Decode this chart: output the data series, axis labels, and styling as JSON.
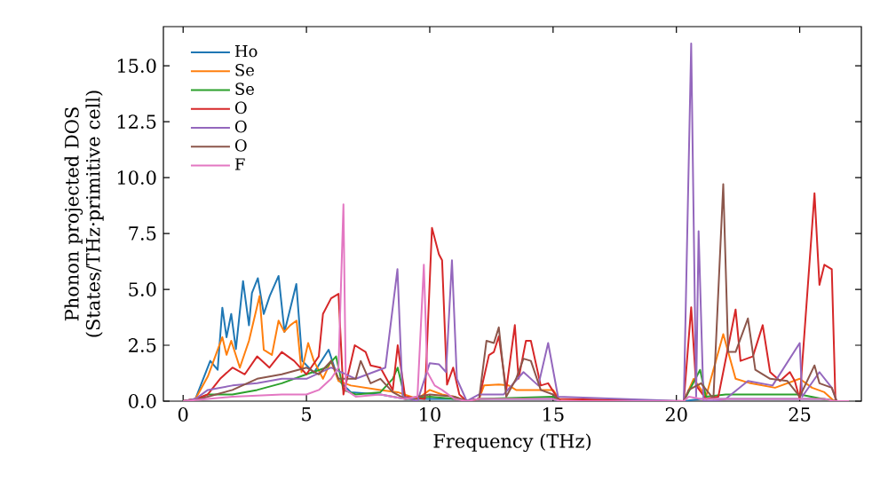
{
  "chart_data": {
    "type": "line",
    "xlabel": "Frequency (THz)",
    "ylabel": "Phonon projected DOS (States/THz·primitive cell)",
    "xlim": [
      -0.8,
      27.5
    ],
    "ylim": [
      0,
      16.75
    ],
    "xticks": [
      0,
      5,
      10,
      15,
      20,
      25
    ],
    "yticks": [
      {
        "value": 0,
        "label": "0.0"
      },
      {
        "value": 2.5,
        "label": "2.5"
      },
      {
        "value": 5,
        "label": "5.0"
      },
      {
        "value": 7.5,
        "label": "7.5"
      },
      {
        "value": 10,
        "label": "10.0"
      },
      {
        "value": 12.5,
        "label": "12.5"
      },
      {
        "value": 15,
        "label": "15.0"
      }
    ],
    "legend": "top left",
    "series": [
      {
        "name": "Ho",
        "color": "#1f77b4",
        "x": [
          0,
          0.5,
          1.1,
          1.4,
          1.59,
          1.76,
          1.95,
          2.14,
          2.43,
          2.67,
          2.79,
          3.03,
          3.27,
          3.51,
          3.87,
          4.11,
          4.59,
          4.83,
          5.3,
          5.9,
          6.3,
          6.8,
          8,
          9,
          11,
          11.5,
          12,
          15,
          15.3,
          20.3,
          21,
          24,
          26,
          26.5,
          27
        ],
        "values": [
          0,
          0.1,
          1.8,
          1.4,
          4.18,
          2.86,
          3.9,
          2.33,
          5.37,
          3.39,
          4.84,
          5.5,
          3.9,
          4.7,
          5.6,
          3.1,
          5.24,
          1.8,
          1.27,
          2.3,
          0.94,
          0.4,
          0.3,
          0.1,
          0.1,
          0,
          0.1,
          0.1,
          0,
          0,
          0.1,
          0.1,
          0.1,
          0,
          0
        ]
      },
      {
        "name": "Se",
        "color": "#ff7f0e",
        "x": [
          0,
          0.5,
          1.0,
          1.59,
          1.76,
          1.95,
          2.3,
          2.67,
          3.1,
          3.27,
          3.6,
          3.87,
          4.1,
          4.35,
          4.6,
          4.8,
          5.07,
          5.3,
          5.67,
          6.0,
          6.3,
          6.8,
          8.0,
          8.7,
          9.5,
          10.0,
          10.5,
          11.0,
          11.5,
          12.0,
          12.2,
          12.8,
          13.2,
          13.5,
          15.0,
          15.3,
          20.3,
          20.7,
          21.2,
          21.9,
          22.4,
          23.0,
          24.0,
          25.0,
          25.5,
          26.0,
          26.4,
          27
        ],
        "values": [
          0,
          0.1,
          1.1,
          2.86,
          2.07,
          2.7,
          1.5,
          2.7,
          4.7,
          2.3,
          2.07,
          3.6,
          3.1,
          3.4,
          3.6,
          1.3,
          2.6,
          1.8,
          1.0,
          1.8,
          0.9,
          0.7,
          0.5,
          0.4,
          0.1,
          0.5,
          0.3,
          0.2,
          0,
          0.1,
          0.7,
          0.74,
          0.7,
          0.5,
          0.5,
          0,
          0,
          1.0,
          0.2,
          3.0,
          1.0,
          0.8,
          0.6,
          1.0,
          0.6,
          0.4,
          0,
          0
        ]
      },
      {
        "name": "Se",
        "color": "#2ca02c",
        "x": [
          0,
          0.5,
          1,
          2,
          3,
          4,
          5,
          5.8,
          6.2,
          6.5,
          7,
          8,
          8.5,
          8.7,
          9,
          10,
          11,
          11.5,
          12,
          15,
          15.3,
          20.3,
          20.96,
          21.2,
          22,
          25,
          26.4,
          27
        ],
        "values": [
          0,
          0.05,
          0.3,
          0.3,
          0.5,
          0.8,
          1.2,
          1.5,
          2.0,
          0.5,
          0.3,
          0.4,
          1.0,
          1.5,
          0.1,
          0.2,
          0.1,
          0,
          0.1,
          0.2,
          0,
          0,
          1.4,
          0.2,
          0.3,
          0.3,
          0,
          0
        ]
      },
      {
        "name": "O",
        "color": "#d62728",
        "x": [
          0,
          0.5,
          1,
          1.5,
          2,
          2.5,
          3,
          3.5,
          4,
          4.5,
          5,
          5.5,
          5.67,
          6.0,
          6.3,
          6.5,
          6.96,
          7.4,
          7.6,
          8.0,
          8.5,
          8.7,
          9.0,
          9.8,
          10.09,
          10.37,
          10.5,
          10.7,
          10.95,
          11.2,
          11.5,
          12,
          12.4,
          12.6,
          12.8,
          13.1,
          13.45,
          13.6,
          13.9,
          14.1,
          14.5,
          14.8,
          15.2,
          20.3,
          20.6,
          20.8,
          21.2,
          21.7,
          22.4,
          22.6,
          23.1,
          23.5,
          23.8,
          24.2,
          24.6,
          24.8,
          25.0,
          25.6,
          25.8,
          26.0,
          26.3,
          26.45,
          27
        ],
        "values": [
          0,
          0.1,
          0.3,
          1.0,
          1.5,
          1.2,
          2.0,
          1.5,
          2.2,
          1.8,
          1.2,
          2.0,
          3.9,
          4.6,
          4.8,
          0.3,
          2.5,
          2.2,
          1.6,
          1.5,
          0.5,
          2.5,
          0.2,
          0.1,
          7.75,
          6.57,
          6.3,
          0.74,
          1.5,
          0.3,
          0,
          0.1,
          2.06,
          2.2,
          2.9,
          0.5,
          3.4,
          1.0,
          2.7,
          2.7,
          0.7,
          0.8,
          0.1,
          0,
          4.2,
          0.7,
          0.1,
          0.2,
          4.1,
          1.8,
          2.0,
          3.4,
          1.3,
          0.9,
          1.3,
          0.9,
          0.1,
          9.3,
          5.2,
          6.1,
          5.9,
          0,
          0
        ]
      },
      {
        "name": "O",
        "color": "#9467bd",
        "x": [
          0,
          0.5,
          1,
          2,
          3,
          4,
          5,
          6,
          7,
          8.2,
          8.69,
          8.9,
          9.5,
          10.0,
          10.37,
          10.66,
          10.9,
          11.1,
          11.5,
          12,
          13,
          13.8,
          14.4,
          14.8,
          15.2,
          20.3,
          20.6,
          20.8,
          20.9,
          21.1,
          21.5,
          22,
          22.9,
          23.9,
          25.0,
          25.1,
          25.8,
          26.3,
          26.5,
          27
        ],
        "values": [
          0,
          0.1,
          0.5,
          0.7,
          0.8,
          1.0,
          1.0,
          1.5,
          1.0,
          1.5,
          5.9,
          0.2,
          0,
          1.7,
          1.65,
          1.3,
          6.3,
          1.0,
          0,
          0.3,
          0.3,
          1.3,
          0.7,
          2.6,
          0.2,
          0,
          16.0,
          0.2,
          7.6,
          0,
          0,
          0.1,
          0.9,
          0.7,
          2.6,
          0.2,
          1.3,
          0.6,
          0,
          0
        ]
      },
      {
        "name": "O",
        "color": "#8c564b",
        "x": [
          0,
          0.5,
          1,
          2,
          3,
          4,
          5,
          5.5,
          6,
          6.3,
          7,
          7.2,
          7.6,
          8,
          8.5,
          9,
          10,
          11,
          11.5,
          12,
          12.3,
          12.6,
          12.8,
          13.1,
          13.5,
          13.8,
          14.1,
          14.5,
          15,
          15.3,
          20.3,
          20.5,
          21,
          21.5,
          21.9,
          22.1,
          22.4,
          22.9,
          23.2,
          23.8,
          24.5,
          25.0,
          25.6,
          25.8,
          26.3,
          26.5,
          27
        ],
        "values": [
          0,
          0.05,
          0.2,
          0.5,
          1.0,
          1.2,
          1.5,
          1.2,
          1.8,
          1.0,
          1.0,
          1.8,
          0.8,
          1.0,
          0.4,
          0.1,
          0.3,
          0.2,
          0,
          0.1,
          2.7,
          2.6,
          3.3,
          0.2,
          1.0,
          1.9,
          1.8,
          0.5,
          0.3,
          0,
          0,
          0.5,
          0.8,
          0.1,
          9.7,
          2.2,
          2.2,
          3.7,
          1.4,
          1.0,
          0.9,
          0.2,
          1.6,
          0.8,
          0.6,
          0,
          0
        ]
      },
      {
        "name": "F",
        "color": "#e377c2",
        "x": [
          0,
          0.5,
          2,
          4,
          5,
          5.5,
          6,
          6.3,
          6.5,
          6.6,
          7,
          8,
          9,
          9.5,
          9.76,
          9.9,
          10.2,
          10.5,
          11,
          11.5,
          12,
          15,
          15.3,
          20.3,
          20.5,
          21,
          22,
          26,
          26.4,
          27
        ],
        "values": [
          0,
          0.05,
          0.2,
          0.3,
          0.3,
          0.5,
          1.0,
          1.5,
          8.8,
          0.5,
          0.2,
          0.3,
          0.1,
          0.2,
          6.1,
          1.3,
          0.7,
          0.5,
          0.1,
          0,
          0.1,
          0.1,
          0,
          0,
          0.2,
          0.1,
          0.1,
          0.1,
          0,
          0
        ]
      }
    ]
  }
}
